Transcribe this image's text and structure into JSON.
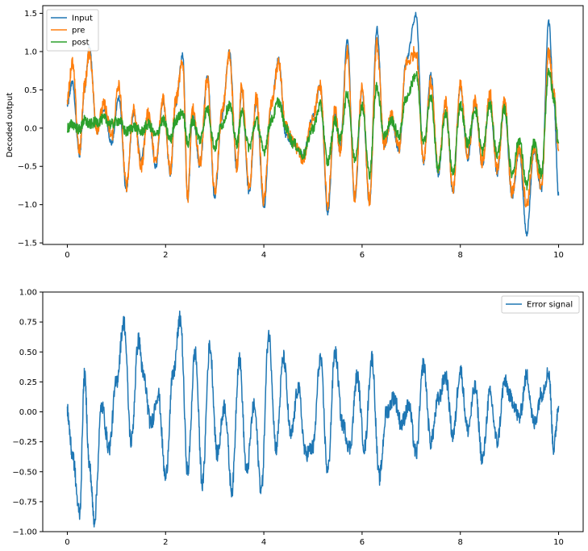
{
  "chart_data": [
    {
      "type": "line",
      "ylabel": "Decoded output",
      "xlim": [
        -0.5,
        10.5
      ],
      "ylim": [
        -1.52,
        1.6
      ],
      "xticks": [
        0,
        2,
        4,
        6,
        8,
        10
      ],
      "xtick_labels": [
        "0",
        "2",
        "4",
        "6",
        "8",
        "10"
      ],
      "yticks": [
        -1.5,
        -1.0,
        -0.5,
        0.0,
        0.5,
        1.0,
        1.5
      ],
      "ytick_labels": [
        "−1.5",
        "−1.0",
        "−0.5",
        "0.0",
        "0.5",
        "1.0",
        "1.5"
      ],
      "grid": false,
      "legend": {
        "placement": "upper-left",
        "entries": [
          "Input",
          "pre",
          "post"
        ]
      },
      "colors": {
        "Input": "#1f77b4",
        "pre": "#ff7f0e",
        "post": "#2ca02c"
      },
      "series": [
        {
          "name": "Input",
          "x": [
            0,
            0.1,
            0.25,
            0.35,
            0.45,
            0.6,
            0.75,
            0.9,
            1.05,
            1.2,
            1.35,
            1.5,
            1.65,
            1.8,
            1.95,
            2.1,
            2.2,
            2.35,
            2.45,
            2.55,
            2.7,
            2.85,
            3.0,
            3.15,
            3.3,
            3.45,
            3.55,
            3.7,
            3.85,
            4.0,
            4.15,
            4.3,
            4.45,
            4.6,
            4.8,
            5.0,
            5.15,
            5.3,
            5.45,
            5.55,
            5.7,
            5.85,
            6.0,
            6.15,
            6.3,
            6.45,
            6.6,
            6.75,
            6.9,
            7.1,
            7.25,
            7.4,
            7.55,
            7.7,
            7.85,
            8.0,
            8.15,
            8.3,
            8.45,
            8.6,
            8.75,
            8.9,
            9.05,
            9.2,
            9.35,
            9.5,
            9.65,
            9.8,
            9.9,
            10.0
          ],
          "values": [
            0.3,
            0.6,
            -0.35,
            0.5,
            1.05,
            -0.05,
            0.25,
            -0.2,
            0.4,
            -0.8,
            0.2,
            -0.4,
            0.15,
            -0.5,
            0.35,
            -0.6,
            0.3,
            0.95,
            -0.95,
            0.2,
            -0.5,
            0.7,
            -0.9,
            0.15,
            1.0,
            -0.55,
            0.5,
            -0.85,
            0.35,
            -1.05,
            0.3,
            0.9,
            -0.1,
            -0.2,
            -0.35,
            0.15,
            0.55,
            -1.1,
            0.2,
            -0.3,
            1.15,
            -0.95,
            0.5,
            -1.0,
            1.3,
            -0.25,
            0.1,
            -0.3,
            0.9,
            1.48,
            -0.45,
            0.7,
            -0.6,
            0.35,
            -0.85,
            0.55,
            -0.4,
            0.3,
            -0.5,
            0.4,
            -0.6,
            0.3,
            -0.9,
            -0.3,
            -1.38,
            -0.3,
            -0.8,
            1.4,
            0.4,
            -0.88
          ]
        },
        {
          "name": "pre",
          "x": [
            0,
            0.1,
            0.25,
            0.35,
            0.45,
            0.6,
            0.75,
            0.9,
            1.05,
            1.2,
            1.35,
            1.5,
            1.65,
            1.8,
            1.95,
            2.1,
            2.2,
            2.35,
            2.45,
            2.55,
            2.7,
            2.85,
            3.0,
            3.15,
            3.3,
            3.45,
            3.55,
            3.7,
            3.85,
            4.0,
            4.15,
            4.3,
            4.45,
            4.6,
            4.8,
            5.0,
            5.15,
            5.3,
            5.45,
            5.55,
            5.7,
            5.85,
            6.0,
            6.15,
            6.3,
            6.45,
            6.6,
            6.75,
            6.9,
            7.1,
            7.25,
            7.4,
            7.55,
            7.7,
            7.85,
            8.0,
            8.15,
            8.3,
            8.45,
            8.6,
            8.75,
            8.9,
            9.05,
            9.2,
            9.35,
            9.5,
            9.65,
            9.8,
            9.9,
            10.0
          ],
          "values": [
            0.4,
            0.85,
            -0.3,
            0.55,
            1.0,
            0.0,
            0.3,
            -0.1,
            0.55,
            -0.75,
            0.25,
            -0.5,
            0.2,
            -0.45,
            0.4,
            -0.55,
            0.35,
            0.85,
            -0.9,
            0.25,
            -0.45,
            0.65,
            -0.85,
            0.2,
            0.95,
            -0.5,
            0.55,
            -0.8,
            0.4,
            -0.95,
            0.3,
            0.85,
            0.0,
            -0.2,
            -0.4,
            0.15,
            0.55,
            -1.0,
            0.25,
            -0.3,
            1.0,
            -0.9,
            0.55,
            -0.95,
            1.1,
            -0.2,
            0.15,
            -0.25,
            0.85,
            1.0,
            -0.4,
            0.6,
            -0.55,
            0.35,
            -0.8,
            0.55,
            -0.35,
            0.35,
            -0.45,
            0.45,
            -0.55,
            0.35,
            -0.85,
            -0.25,
            -1.0,
            -0.3,
            -0.75,
            1.0,
            0.45,
            -0.3
          ]
        },
        {
          "name": "post",
          "x": [
            0,
            0.1,
            0.25,
            0.35,
            0.45,
            0.6,
            0.75,
            0.9,
            1.05,
            1.2,
            1.35,
            1.5,
            1.65,
            1.8,
            1.95,
            2.1,
            2.2,
            2.35,
            2.45,
            2.55,
            2.7,
            2.85,
            3.0,
            3.15,
            3.3,
            3.45,
            3.55,
            3.7,
            3.85,
            4.0,
            4.15,
            4.3,
            4.45,
            4.6,
            4.8,
            5.0,
            5.15,
            5.3,
            5.45,
            5.55,
            5.7,
            5.85,
            6.0,
            6.15,
            6.3,
            6.45,
            6.6,
            6.75,
            6.9,
            7.1,
            7.25,
            7.4,
            7.55,
            7.7,
            7.85,
            8.0,
            8.15,
            8.3,
            8.45,
            8.6,
            8.75,
            8.9,
            9.05,
            9.2,
            9.35,
            9.5,
            9.65,
            9.8,
            9.9,
            10.0
          ],
          "values": [
            0.0,
            0.05,
            -0.02,
            0.1,
            0.05,
            0.08,
            0.12,
            0.05,
            0.1,
            -0.05,
            0.02,
            -0.05,
            0.05,
            -0.1,
            0.1,
            -0.15,
            0.1,
            0.2,
            -0.2,
            0.1,
            -0.15,
            0.25,
            -0.25,
            0.05,
            0.3,
            -0.2,
            0.2,
            -0.25,
            0.1,
            -0.3,
            0.1,
            0.35,
            0.0,
            -0.2,
            -0.35,
            0.0,
            0.3,
            -0.45,
            0.1,
            -0.15,
            0.45,
            -0.4,
            0.3,
            -0.6,
            0.55,
            -0.1,
            0.1,
            -0.1,
            0.4,
            0.7,
            -0.2,
            0.4,
            -0.55,
            0.2,
            -0.6,
            0.3,
            -0.2,
            0.25,
            -0.3,
            0.3,
            -0.35,
            0.25,
            -0.6,
            -0.15,
            -0.75,
            -0.2,
            -0.6,
            0.75,
            0.4,
            -0.2
          ]
        }
      ]
    },
    {
      "type": "line",
      "xlim": [
        -0.5,
        10.5
      ],
      "ylim": [
        -1.0,
        1.0
      ],
      "xticks": [
        0,
        2,
        4,
        6,
        8,
        10
      ],
      "xtick_labels": [
        "0",
        "2",
        "4",
        "6",
        "8",
        "10"
      ],
      "yticks": [
        -1.0,
        -0.75,
        -0.5,
        -0.25,
        0.0,
        0.25,
        0.5,
        0.75,
        1.0
      ],
      "ytick_labels": [
        "−1.00",
        "−0.75",
        "−0.50",
        "−0.25",
        "0.00",
        "0.25",
        "0.50",
        "0.75",
        "1.00"
      ],
      "grid": false,
      "legend": {
        "placement": "upper-right",
        "entries": [
          "Error signal"
        ]
      },
      "colors": {
        "Error signal": "#1f77b4"
      },
      "series": [
        {
          "name": "Error signal",
          "x": [
            0,
            0.1,
            0.25,
            0.35,
            0.45,
            0.55,
            0.7,
            0.85,
            1.0,
            1.15,
            1.3,
            1.45,
            1.55,
            1.7,
            1.85,
            2.0,
            2.15,
            2.3,
            2.45,
            2.6,
            2.75,
            2.9,
            3.05,
            3.2,
            3.35,
            3.5,
            3.65,
            3.8,
            3.95,
            4.1,
            4.25,
            4.4,
            4.55,
            4.7,
            4.85,
            5.0,
            5.15,
            5.3,
            5.45,
            5.6,
            5.75,
            5.9,
            6.05,
            6.2,
            6.35,
            6.5,
            6.65,
            6.8,
            6.95,
            7.1,
            7.25,
            7.4,
            7.55,
            7.7,
            7.85,
            8.0,
            8.15,
            8.3,
            8.45,
            8.6,
            8.75,
            8.9,
            9.05,
            9.2,
            9.35,
            9.5,
            9.65,
            9.8,
            9.9,
            10.0
          ],
          "values": [
            0.0,
            -0.35,
            -0.85,
            0.3,
            -0.45,
            -0.9,
            0.05,
            -0.3,
            0.25,
            0.75,
            -0.25,
            0.6,
            0.3,
            -0.1,
            0.15,
            -0.55,
            0.3,
            0.78,
            -0.5,
            0.5,
            -0.6,
            0.55,
            -0.35,
            0.05,
            -0.65,
            0.45,
            -0.5,
            0.05,
            -0.65,
            0.65,
            -0.3,
            0.45,
            -0.2,
            0.2,
            -0.35,
            -0.3,
            0.45,
            -0.5,
            0.5,
            -0.1,
            -0.3,
            0.3,
            -0.3,
            0.45,
            -0.55,
            0.0,
            0.12,
            -0.1,
            0.05,
            -0.35,
            0.4,
            -0.25,
            0.1,
            0.3,
            -0.2,
            0.35,
            -0.15,
            0.2,
            -0.4,
            0.15,
            -0.25,
            0.25,
            0.1,
            -0.05,
            0.3,
            -0.1,
            0.15,
            0.33,
            -0.3,
            0.05
          ]
        }
      ]
    }
  ]
}
